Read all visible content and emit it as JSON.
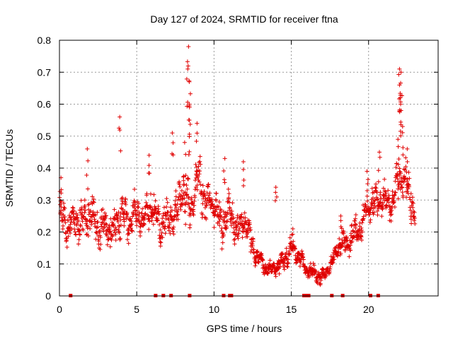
{
  "chart_data": {
    "type": "scatter",
    "title": "Day 127 of 2024, SRMTID for receiver ftna",
    "xlabel": "GPS time / hours",
    "ylabel": "SRMTID / TECUs",
    "xlim": [
      0,
      24.5
    ],
    "ylim": [
      0,
      0.8
    ],
    "x_ticks": [
      0,
      5,
      10,
      15,
      20
    ],
    "x_tick_labels": [
      "0",
      "5",
      "10",
      "15",
      "20"
    ],
    "y_ticks": [
      0,
      0.1,
      0.2,
      0.3,
      0.4,
      0.5,
      0.6,
      0.7,
      0.8
    ],
    "y_tick_labels": [
      "0",
      "0.1",
      "0.2",
      "0.3",
      "0.4",
      "0.5",
      "0.6",
      "0.7",
      "0.8"
    ],
    "grid": true,
    "marker": "+",
    "color": "#e00000",
    "trend": {
      "x": [
        0,
        0.5,
        1,
        1.5,
        2,
        2.5,
        3,
        3.5,
        4,
        4.5,
        5,
        5.5,
        6,
        6.5,
        7,
        7.5,
        8,
        8.5,
        9,
        9.5,
        10,
        10.5,
        11,
        11.5,
        12,
        12.5,
        13,
        13.5,
        14,
        14.5,
        15,
        15.5,
        16,
        16.5,
        17,
        17.5,
        18,
        18.5,
        19,
        19.5,
        20,
        20.5,
        21,
        21.5,
        22,
        22.5,
        23
      ],
      "y": [
        0.26,
        0.22,
        0.24,
        0.23,
        0.27,
        0.2,
        0.22,
        0.2,
        0.27,
        0.23,
        0.25,
        0.24,
        0.28,
        0.22,
        0.24,
        0.26,
        0.33,
        0.26,
        0.38,
        0.28,
        0.3,
        0.22,
        0.27,
        0.2,
        0.25,
        0.15,
        0.11,
        0.08,
        0.09,
        0.11,
        0.15,
        0.13,
        0.08,
        0.07,
        0.06,
        0.09,
        0.15,
        0.17,
        0.19,
        0.22,
        0.28,
        0.3,
        0.3,
        0.28,
        0.37,
        0.35,
        0.25
      ],
      "spread": [
        0.07,
        0.07,
        0.07,
        0.07,
        0.08,
        0.08,
        0.07,
        0.07,
        0.08,
        0.07,
        0.07,
        0.07,
        0.08,
        0.07,
        0.07,
        0.08,
        0.1,
        0.09,
        0.09,
        0.08,
        0.07,
        0.07,
        0.07,
        0.07,
        0.07,
        0.05,
        0.04,
        0.03,
        0.03,
        0.04,
        0.04,
        0.04,
        0.03,
        0.03,
        0.03,
        0.03,
        0.04,
        0.05,
        0.05,
        0.06,
        0.07,
        0.07,
        0.07,
        0.07,
        0.08,
        0.08,
        0.06
      ]
    },
    "peaks": [
      {
        "x": 0.1,
        "y": 0.37
      },
      {
        "x": 1.8,
        "y": 0.46
      },
      {
        "x": 3.9,
        "y": 0.56
      },
      {
        "x": 5.8,
        "y": 0.44
      },
      {
        "x": 7.3,
        "y": 0.51
      },
      {
        "x": 8.1,
        "y": 0.48
      },
      {
        "x": 8.35,
        "y": 0.78
      },
      {
        "x": 8.3,
        "y": 0.71
      },
      {
        "x": 8.4,
        "y": 0.67
      },
      {
        "x": 8.4,
        "y": 0.6
      },
      {
        "x": 8.4,
        "y": 0.55
      },
      {
        "x": 8.9,
        "y": 0.54
      },
      {
        "x": 10.7,
        "y": 0.43
      },
      {
        "x": 11.9,
        "y": 0.42
      },
      {
        "x": 14.0,
        "y": 0.34
      },
      {
        "x": 15.1,
        "y": 0.21
      },
      {
        "x": 18.2,
        "y": 0.25
      },
      {
        "x": 19.9,
        "y": 0.39
      },
      {
        "x": 20.7,
        "y": 0.45
      },
      {
        "x": 22.0,
        "y": 0.71
      },
      {
        "x": 22.1,
        "y": 0.7
      },
      {
        "x": 22.0,
        "y": 0.66
      },
      {
        "x": 22.05,
        "y": 0.62
      },
      {
        "x": 22.1,
        "y": 0.58
      },
      {
        "x": 22.2,
        "y": 0.53
      },
      {
        "x": 22.5,
        "y": 0.46
      },
      {
        "x": 21.9,
        "y": 0.49
      }
    ],
    "zero_points_x": [
      0.7,
      6.2,
      6.7,
      7.2,
      8.4,
      10.6,
      11.0,
      11.1,
      15.8,
      15.9,
      16.0,
      16.1,
      17.6,
      18.3,
      20.1,
      20.6
    ]
  }
}
